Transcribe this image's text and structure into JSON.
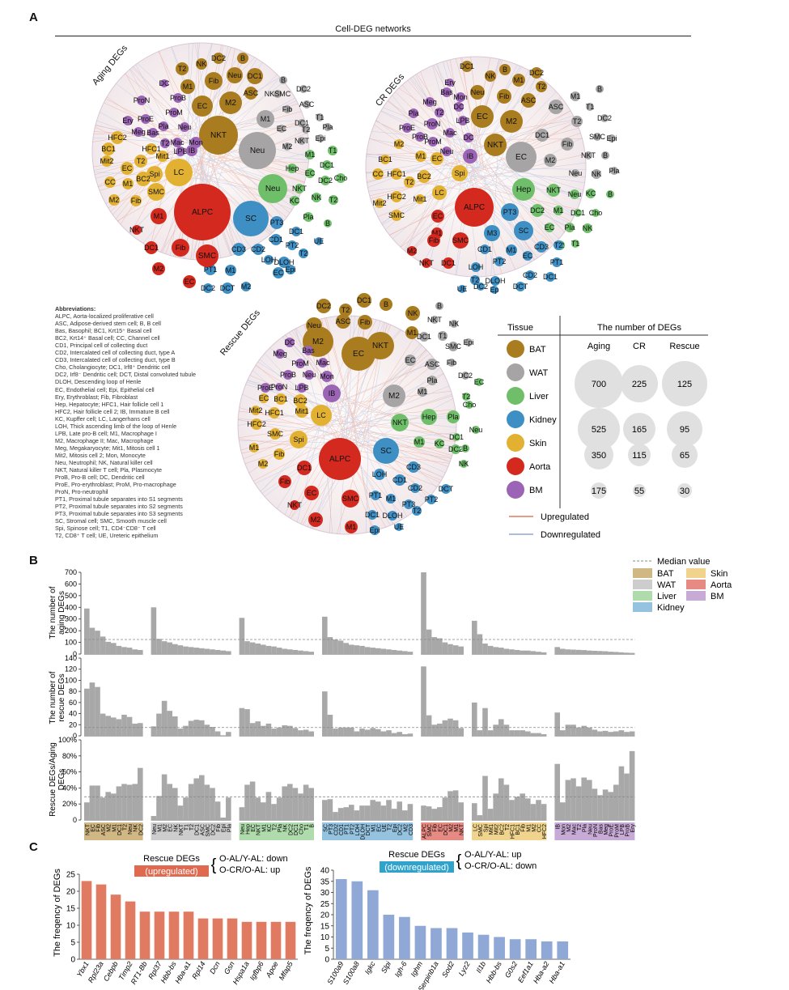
{
  "panels": {
    "a": "A",
    "b": "B",
    "c": "C"
  },
  "colors": {
    "BAT": "#a97c1f",
    "WAT": "#a6a4a5",
    "Liver": "#6fbf6a",
    "Kidney": "#3d8fc4",
    "Skin": "#e3b132",
    "Aorta": "#d3291e",
    "BM": "#9b64b5",
    "barGray": "#a8a8a8",
    "up": "#e07a61",
    "down": "#8fa8d6",
    "upBox": "#e06a4f",
    "downBox": "#30a3cc"
  },
  "net": {
    "title": "Cell-DEG networks",
    "labels": {
      "aging": "Aging DEGs",
      "cr": "CR DEGs",
      "rescue": "Rescue DEGs"
    }
  },
  "abbreviations": {
    "title": "Abbreviations:",
    "lines": [
      "ALPC, Aorta-localized proliferative cell",
      "ASC, Adipose-derived stem cell; B, B cell",
      "Bas, Basophil; BC1, Krt15⁺ Basal cell",
      "BC2, Krt14⁺ Basal cell; CC, Channel cell",
      "CD1, Principal cell of collecting duct",
      "CD2, Intercalated cell of collecting duct, type A",
      "CD3, Intercalated cell of collecting duct, type B",
      "Cho, Cholangiocyte; DC1, Irf8⁺ Dendritic cell",
      "DC2, Irf8⁻ Dendritic cell; DCT, Distal convoluted tubule",
      "DLOH, Descending loop of Henle",
      "EC, Endothelial cell; Epi, Epithelial cell",
      "Ery, Erythroblast; Fib, Fibroblast",
      "Hep, Hepatocyte; HFC1, Hair follicle cell 1",
      "HFC2, Hair follicle cell 2; IB, Immature B cell",
      "KC, Kupffer cell; LC, Langerhans cell",
      "LOH, Thick ascending limb of the loop of Henle",
      "LPB, Late pro-B cell; M1, Macrophage I",
      "M2, Macrophage II; Mac, Macrophage",
      "Meg, Megakaryocyte; Mit1, Mitosis cell 1",
      "Mit2, Mitosis cell 2; Mon, Monocyte",
      "Neu, Neutrophil; NK, Natural killer cell",
      "NKT, Natural killer T cell; Pla, Plasmocyte",
      "ProB, Pro-B cell; DC, Dendritic cell",
      "ProE, Pro-erythroblast; ProM, Pro-macrophage",
      "ProN, Pro-neutrophil",
      "PT1, Proximal tubule separates into S1 segments",
      "PT2, Proximal tubule separates into S2 segments",
      "PT3, Proximal tubule separates into S3 segments",
      "SC, Stromal cell; SMC, Smooth muscle cell",
      "Spi, Spinose cell; T1, CD4⁻CD8⁻ T cell",
      "T2, CD8⁺ T cell; UE, Ureteric epithelium"
    ]
  },
  "legend_table": {
    "h_tissue": "Tissue",
    "h_number": "The number of DEGs",
    "h_aging": "Aging",
    "h_cr": "CR",
    "h_rescue": "Rescue",
    "tissues": [
      "BAT",
      "WAT",
      "Liver",
      "Kidney",
      "Skin",
      "Aorta",
      "BM"
    ],
    "sizes": [
      [
        "700",
        "225",
        "125"
      ],
      [
        "525",
        "165",
        "95"
      ],
      [
        "350",
        "115",
        "65"
      ],
      [
        "175",
        "55",
        "30"
      ]
    ],
    "upregulated": "Upregulated",
    "downregulated": "Downregulated"
  },
  "panel_b": {
    "median_label": "Median value",
    "y1_line1": "The number of",
    "y1_line2": "aging DEGs",
    "y2_line1": "The number of",
    "y2_line2": "rescue DEGs",
    "y3_line1": "Rescue DEGs/Aging",
    "y3_line2": "DEGs"
  },
  "chart_data": [
    {
      "type": "bar",
      "title": "",
      "ylabel": "The number of aging DEGs",
      "ylim": [
        0,
        700
      ],
      "yticks": [
        "0",
        "100",
        "200",
        "300",
        "400",
        "500",
        "600",
        "700"
      ],
      "median": 125,
      "groups": [
        {
          "tissue": "BAT",
          "categories": [
            "NKT",
            "EC",
            "Fib",
            "ASC",
            "M2",
            "M1",
            "DC1",
            "T2",
            "Neu",
            "NK",
            "DC2"
          ],
          "values": [
            390,
            225,
            200,
            150,
            105,
            95,
            70,
            60,
            55,
            40,
            35
          ]
        },
        {
          "tissue": "WAT",
          "categories": [
            "Neu",
            "M1",
            "M2",
            "EC",
            "NK",
            "NKT",
            "T1",
            "T2",
            "DC1",
            "ASC",
            "SMC",
            "DC2",
            "Fib",
            "Epi",
            "Pla"
          ],
          "values": [
            400,
            130,
            110,
            100,
            85,
            75,
            65,
            60,
            55,
            50,
            45,
            40,
            35,
            30,
            25
          ]
        },
        {
          "tissue": "Liver",
          "categories": [
            "Neu",
            "Hep",
            "EC",
            "NKT",
            "M1",
            "KC",
            "T2",
            "Pla",
            "NK",
            "DC2",
            "DC1",
            "Cho",
            "T1",
            "B"
          ],
          "values": [
            310,
            110,
            100,
            90,
            80,
            70,
            65,
            55,
            45,
            40,
            35,
            30,
            25,
            20
          ]
        },
        {
          "tissue": "Kidney",
          "categories": [
            "SC",
            "PT3",
            "CD2",
            "CD1",
            "PT1",
            "PT2",
            "LOH",
            "DLOH",
            "DCT",
            "M1",
            "EC",
            "UE",
            "T2",
            "Epi",
            "DC2",
            "M2",
            "CD3"
          ],
          "values": [
            320,
            145,
            125,
            115,
            95,
            80,
            75,
            70,
            60,
            55,
            50,
            45,
            40,
            35,
            30,
            25,
            20
          ]
        },
        {
          "tissue": "Aorta",
          "categories": [
            "ALPC",
            "SMC",
            "Fib",
            "EC",
            "DC1",
            "M2",
            "M1",
            "NKT"
          ],
          "values": [
            700,
            210,
            145,
            135,
            100,
            85,
            75,
            65
          ]
        },
        {
          "tissue": "Skin",
          "categories": [
            "LC",
            "SMC",
            "Spi",
            "Mit1",
            "Mit2",
            "BC2",
            "T2",
            "HFC1",
            "BC1",
            "Fib",
            "M1",
            "M2",
            "CC",
            "HFC2"
          ],
          "values": [
            285,
            170,
            90,
            70,
            60,
            55,
            45,
            40,
            35,
            30,
            30,
            25,
            20,
            15
          ]
        },
        {
          "tissue": "BM",
          "categories": [
            "IB",
            "Mon",
            "M2",
            "Mac",
            "T2",
            "Pla",
            "Neu",
            "ProN",
            "Bas",
            "Meg",
            "ProE",
            "ProM",
            "LPB",
            "ProB",
            "Ery"
          ],
          "values": [
            60,
            45,
            40,
            38,
            36,
            34,
            30,
            28,
            26,
            24,
            20,
            18,
            15,
            12,
            10
          ]
        }
      ]
    },
    {
      "type": "bar",
      "title": "",
      "ylabel": "The number of rescue DEGs",
      "ylim": [
        0,
        140
      ],
      "yticks": [
        "0",
        "20",
        "40",
        "60",
        "80",
        "100",
        "120",
        "140"
      ],
      "median": 15,
      "groups": [
        {
          "tissue": "BAT",
          "categories": [
            "NKT",
            "EC",
            "Fib",
            "ASC",
            "M2",
            "M1",
            "DC1",
            "T2",
            "Neu",
            "NK",
            "DC2"
          ],
          "values": [
            85,
            96,
            88,
            40,
            36,
            33,
            30,
            38,
            34,
            22,
            23
          ]
        },
        {
          "tissue": "WAT",
          "categories": [
            "Neu",
            "M1",
            "M2",
            "EC",
            "NK",
            "NKT",
            "T1",
            "T2",
            "DC1",
            "ASC",
            "SMC",
            "DC2",
            "Fib",
            "Epi",
            "Pla"
          ],
          "values": [
            17,
            40,
            63,
            45,
            35,
            13,
            18,
            27,
            29,
            28,
            20,
            16,
            8,
            1,
            7
          ]
        },
        {
          "tissue": "Liver",
          "categories": [
            "Neu",
            "Hep",
            "EC",
            "NKT",
            "M1",
            "KC",
            "T2",
            "Pla",
            "NK",
            "DC2",
            "DC1",
            "Cho",
            "T1",
            "B"
          ],
          "values": [
            50,
            48,
            23,
            26,
            18,
            22,
            13,
            15,
            19,
            18,
            14,
            10,
            11,
            8
          ]
        },
        {
          "tissue": "Kidney",
          "categories": [
            "SC",
            "PT3",
            "CD2",
            "CD1",
            "PT1",
            "PT2",
            "LOH",
            "DLOH",
            "DCT",
            "M1",
            "EC",
            "UE",
            "T2",
            "Epi",
            "DC2",
            "M2",
            "CD3"
          ],
          "values": [
            80,
            38,
            13,
            15,
            15,
            15,
            8,
            13,
            11,
            14,
            12,
            8,
            10,
            5,
            7,
            3,
            4
          ]
        },
        {
          "tissue": "Aorta",
          "categories": [
            "ALPC",
            "SMC",
            "Fib",
            "EC",
            "DC1",
            "M2",
            "M1",
            "NKT"
          ],
          "values": [
            125,
            37,
            20,
            22,
            28,
            31,
            28,
            14
          ]
        },
        {
          "tissue": "Skin",
          "categories": [
            "LC",
            "SMC",
            "Spi",
            "Mit1",
            "Mit2",
            "BC2",
            "T2",
            "HFC1",
            "BC1",
            "Fib",
            "M1",
            "M2",
            "CC",
            "HFC2"
          ],
          "values": [
            60,
            10,
            50,
            10,
            20,
            30,
            20,
            10,
            10,
            10,
            8,
            5,
            5,
            3
          ]
        },
        {
          "tissue": "BM",
          "categories": [
            "IB",
            "Mon",
            "M2",
            "Mac",
            "T2",
            "Pla",
            "Neu",
            "ProN",
            "Bas",
            "Meg",
            "ProE",
            "ProM",
            "LPB",
            "ProB",
            "Ery"
          ],
          "values": [
            42,
            10,
            20,
            20,
            15,
            18,
            15,
            11,
            8,
            9,
            7,
            8,
            10,
            7,
            8
          ]
        }
      ]
    },
    {
      "type": "bar",
      "title": "",
      "ylabel": "Rescue DEGs/Aging DEGs",
      "ylim": [
        0,
        100
      ],
      "yticks": [
        "0",
        "20%",
        "40%",
        "60%",
        "80%",
        "100%"
      ],
      "median": 29,
      "groups": [
        {
          "tissue": "BAT",
          "categories": [
            "NKT",
            "EC",
            "Fib",
            "ASC",
            "M2",
            "M1",
            "DC1",
            "T2",
            "Neu",
            "NK",
            "DC2"
          ],
          "values": [
            22,
            43,
            43,
            28,
            35,
            33,
            42,
            45,
            44,
            45,
            65
          ]
        },
        {
          "tissue": "WAT",
          "categories": [
            "Neu",
            "M1",
            "M2",
            "EC",
            "NK",
            "NKT",
            "T1",
            "T2",
            "DC1",
            "ASC",
            "SMC",
            "DC2",
            "Fib",
            "Epi",
            "Pla"
          ],
          "values": [
            5,
            30,
            57,
            45,
            40,
            18,
            28,
            45,
            52,
            56,
            44,
            40,
            23,
            3,
            28
          ]
        },
        {
          "tissue": "Liver",
          "categories": [
            "Neu",
            "Hep",
            "EC",
            "NKT",
            "M1",
            "KC",
            "T2",
            "Pla",
            "NK",
            "DC2",
            "DC1",
            "Cho",
            "T1",
            "B"
          ],
          "values": [
            16,
            44,
            48,
            28,
            22,
            35,
            20,
            28,
            42,
            45,
            40,
            33,
            44,
            40
          ]
        },
        {
          "tissue": "Kidney",
          "categories": [
            "SC",
            "PT3",
            "CD2",
            "CD1",
            "PT1",
            "PT2",
            "LOH",
            "DLOH",
            "DCT",
            "M1",
            "EC",
            "UE",
            "T2",
            "Epi",
            "DC2",
            "M2",
            "CD3"
          ],
          "values": [
            25,
            26,
            10,
            15,
            16,
            19,
            12,
            18,
            18,
            25,
            23,
            18,
            25,
            14,
            23,
            12,
            20
          ]
        },
        {
          "tissue": "Aorta",
          "categories": [
            "ALPC",
            "SMC",
            "Fib",
            "EC",
            "DC1",
            "M2",
            "M1",
            "NKT"
          ],
          "values": [
            18,
            17,
            14,
            16,
            28,
            36,
            37,
            22
          ]
        },
        {
          "tissue": "Skin",
          "categories": [
            "LC",
            "SMC",
            "Spi",
            "Mit1",
            "Mit2",
            "BC2",
            "T2",
            "HFC1",
            "BC1",
            "Fib",
            "M1",
            "M2",
            "CC",
            "HFC2"
          ],
          "values": [
            21,
            6,
            55,
            14,
            33,
            52,
            44,
            25,
            29,
            33,
            27,
            20,
            25,
            20
          ]
        },
        {
          "tissue": "BM",
          "categories": [
            "IB",
            "Mon",
            "M2",
            "Mac",
            "T2",
            "Pla",
            "Neu",
            "ProN",
            "Bas",
            "Meg",
            "ProE",
            "ProM",
            "LPB",
            "ProB",
            "Ery"
          ],
          "values": [
            70,
            22,
            50,
            52,
            42,
            53,
            50,
            39,
            31,
            38,
            35,
            44,
            67,
            58,
            86
          ]
        }
      ]
    },
    {
      "type": "bar",
      "title": "Rescue DEGs (upregulated)",
      "ylabel": "The freqency of DEGs",
      "ylim": [
        0,
        25
      ],
      "yticks": [
        "0",
        "5",
        "10",
        "15",
        "20",
        "25"
      ],
      "categories": [
        "Ybx1",
        "Rpl23a",
        "Cebpb",
        "Timp2",
        "RT1-Bb",
        "Rpl37",
        "Hbb-bs",
        "Hba-a1",
        "Rpl14",
        "Dcn",
        "Gsn",
        "Hspa1a",
        "Igfbp6",
        "Apoe",
        "Mfap5"
      ],
      "values": [
        23,
        22,
        19,
        17,
        14,
        14,
        14,
        14,
        12,
        12,
        12,
        11,
        11,
        11,
        11
      ],
      "bracket": {
        "label": "Rescue DEGs",
        "box": "(upregulated)",
        "line1": "O-AL/Y-AL: down",
        "line2": "O-CR/O-AL: up"
      }
    },
    {
      "type": "bar",
      "title": "Rescue DEGs (downregulated)",
      "ylabel": "The freqency of DEGs",
      "ylim": [
        0,
        40
      ],
      "yticks": [
        "0",
        "5",
        "10",
        "15",
        "20",
        "25",
        "30",
        "35",
        "40"
      ],
      "categories": [
        "S100a9",
        "S100a8",
        "Igkc",
        "Slpi",
        "Igh-6",
        "Ighm",
        "Serpinb1a",
        "Sod2",
        "Lyz2",
        "Il1b",
        "Hbb-bs",
        "G0s2",
        "Eef1a1",
        "Hba-a2",
        "Hba-a1"
      ],
      "values": [
        36,
        35,
        31,
        20,
        19,
        15,
        14,
        14,
        12,
        11,
        10,
        9,
        9,
        8,
        8
      ],
      "bracket": {
        "label": "Rescue DEGs",
        "box": "(downregulated)",
        "line1": "O-AL/Y-AL: up",
        "line2": "O-CR/O-AL: down"
      }
    }
  ]
}
